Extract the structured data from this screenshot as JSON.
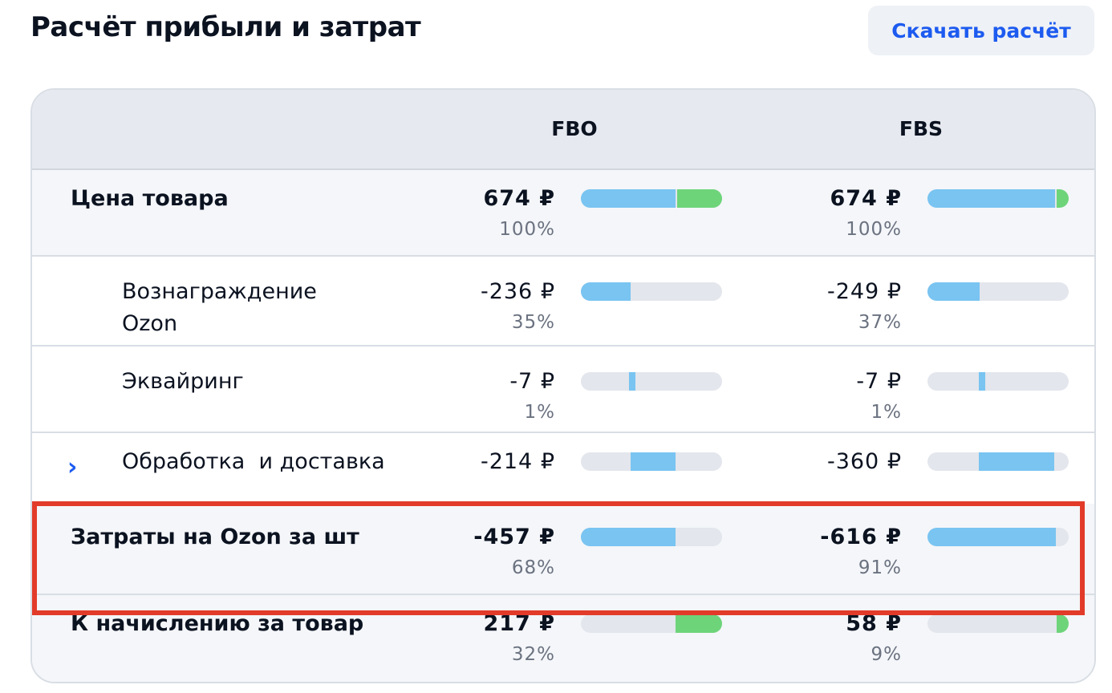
{
  "header": {
    "title": "Расчёт прибыли и затрат",
    "download_label": "Скачать расчёт"
  },
  "table": {
    "columns": [
      "FBO",
      "FBS"
    ],
    "rows": [
      {
        "label": "Цена товара",
        "fbo": {
          "value": "674 ₽",
          "percent": "100%",
          "blue_share": 0.67,
          "green_share": 0.33
        },
        "fbs": {
          "value": "674 ₽",
          "percent": "100%",
          "blue_share": 0.91,
          "green_share": 0.09
        }
      },
      {
        "label": "Вознаграждение Ozon",
        "fbo": {
          "value": "-236 ₽",
          "percent": "35%",
          "share": 0.35
        },
        "fbs": {
          "value": "-249 ₽",
          "percent": "37%",
          "share": 0.37
        }
      },
      {
        "label": "Эквайринг",
        "fbo": {
          "value": "-7 ₽",
          "percent": "1%",
          "share": 0.01
        },
        "fbs": {
          "value": "-7 ₽",
          "percent": "1%",
          "share": 0.01
        }
      },
      {
        "label": "Обработка  и доставка",
        "expand_icon": "chevron-right-icon",
        "fbo": {
          "value": "-214 ₽",
          "percent": "",
          "share": 0.32
        },
        "fbs": {
          "value": "-360 ₽",
          "percent": "",
          "share": 0.53
        }
      },
      {
        "label": "Затраты на Ozon за шт",
        "fbo": {
          "value": "-457 ₽",
          "percent": "68%",
          "share": 0.68
        },
        "fbs": {
          "value": "-616 ₽",
          "percent": "91%",
          "share": 0.91
        }
      },
      {
        "label": "К начислению за товар",
        "fbo": {
          "value": "217 ₽",
          "percent": "32%",
          "share": 0.32
        },
        "fbs": {
          "value": "58 ₽",
          "percent": "9%",
          "share": 0.09
        }
      }
    ]
  },
  "colors": {
    "accent": "#1d5bf0",
    "bar_blue": "#79c4f1",
    "bar_green": "#6ed47a",
    "bar_track": "#e3e6ec",
    "highlight": "#e23b2a"
  }
}
